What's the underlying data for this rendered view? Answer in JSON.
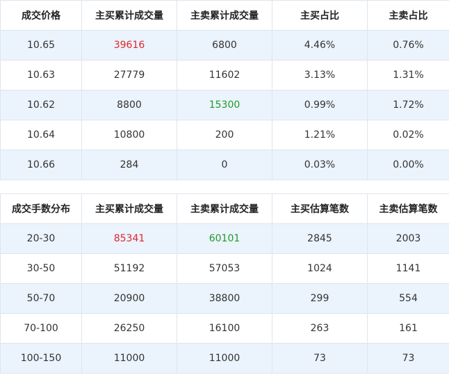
{
  "price_table": {
    "headers": [
      "成交价格",
      "主买累计成交量",
      "主卖累计成交量",
      "主买占比",
      "主卖占比"
    ],
    "rows": [
      [
        "10.65",
        "39616",
        "6800",
        "4.46%",
        "0.76%"
      ],
      [
        "10.63",
        "27779",
        "11602",
        "3.13%",
        "1.31%"
      ],
      [
        "10.62",
        "8800",
        "15300",
        "0.99%",
        "1.72%"
      ],
      [
        "10.64",
        "10800",
        "200",
        "1.21%",
        "0.02%"
      ],
      [
        "10.66",
        "284",
        "0",
        "0.03%",
        "0.00%"
      ]
    ]
  },
  "lot_table": {
    "headers": [
      "成交手数分布",
      "主买累计成交量",
      "主卖累计成交量",
      "主买估算笔数",
      "主卖估算笔数"
    ],
    "rows": [
      [
        "20-30",
        "85341",
        "60101",
        "2845",
        "2003"
      ],
      [
        "30-50",
        "51192",
        "57053",
        "1024",
        "1141"
      ],
      [
        "50-70",
        "20900",
        "38800",
        "299",
        "554"
      ],
      [
        "70-100",
        "26250",
        "16100",
        "263",
        "161"
      ],
      [
        "100-150",
        "11000",
        "11000",
        "73",
        "73"
      ]
    ]
  },
  "colors": {
    "highlight_buy": "#e0262b",
    "highlight_sell": "#1e9b2a",
    "row_alt_bg": "#ebf3fc"
  }
}
